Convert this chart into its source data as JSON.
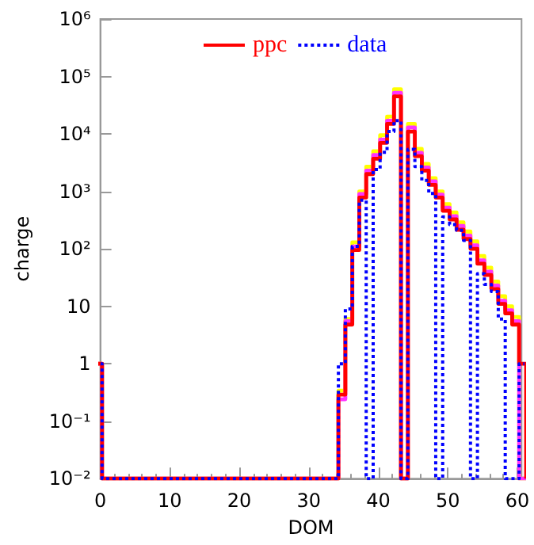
{
  "chart_data": {
    "type": "histogram",
    "xlabel": "DOM",
    "ylabel": "charge",
    "log": "y",
    "legend": "top",
    "grid": false,
    "bins": [
      -0.75,
      0.25,
      1.25,
      2.25,
      3.25,
      4.25,
      5.25,
      6.25,
      7.25,
      8.25,
      9.25,
      10.25,
      11.25,
      12.25,
      13.25,
      14.25,
      15.25,
      16.25,
      17.25,
      18.25,
      19.25,
      20.25,
      21.25,
      22.25,
      23.25,
      24.25,
      25.25,
      26.25,
      27.25,
      28.25,
      29.25,
      30.25,
      31.25,
      32.25,
      33.25,
      34.25,
      35.25,
      36.25,
      37.25,
      38.25,
      39.25,
      40.25,
      41.25,
      42.25,
      43.25,
      44.25,
      45.25,
      46.25,
      47.25,
      48.25,
      49.25,
      50.25,
      51.25,
      52.25,
      53.25,
      54.25,
      55.25,
      56.25,
      57.25,
      58.25,
      59.25,
      60.25,
      61.25
    ],
    "series": [
      {
        "color": "#ffff00",
        "line_style": "solid",
        "values": [
          1,
          null,
          null,
          null,
          null,
          null,
          null,
          null,
          null,
          null,
          null,
          null,
          null,
          null,
          null,
          null,
          null,
          null,
          null,
          null,
          null,
          null,
          null,
          null,
          null,
          null,
          null,
          null,
          null,
          null,
          null,
          null,
          null,
          null,
          null,
          0.34,
          6,
          130,
          1000,
          2700,
          5000,
          9500,
          20000,
          60000,
          null,
          15000,
          5500,
          3000,
          1700,
          1000,
          600,
          430,
          290,
          200,
          135,
          75,
          47,
          27,
          15,
          10,
          6.5,
          null
        ]
      },
      {
        "color": "#ff33ff",
        "line_style": "solid",
        "values": [
          1,
          null,
          null,
          null,
          null,
          null,
          null,
          null,
          null,
          null,
          null,
          null,
          null,
          null,
          null,
          null,
          null,
          null,
          null,
          null,
          null,
          null,
          null,
          null,
          null,
          null,
          null,
          null,
          null,
          null,
          null,
          null,
          null,
          null,
          null,
          0.24,
          5.5,
          110,
          900,
          2300,
          4300,
          8000,
          17000,
          52000,
          null,
          13000,
          4700,
          2600,
          1500,
          880,
          520,
          370,
          250,
          170,
          115,
          63,
          40,
          23,
          12.5,
          8.5,
          5.5,
          null
        ]
      },
      {
        "name": "ppc",
        "color": "#ff0000",
        "line_style": "solid",
        "values": [
          1,
          null,
          null,
          null,
          null,
          null,
          null,
          null,
          null,
          null,
          null,
          null,
          null,
          null,
          null,
          null,
          null,
          null,
          null,
          null,
          null,
          null,
          null,
          null,
          null,
          null,
          null,
          null,
          null,
          null,
          null,
          null,
          null,
          null,
          null,
          0.29,
          4.8,
          95,
          780,
          2000,
          3700,
          7000,
          15000,
          45000,
          null,
          11000,
          4100,
          2300,
          1300,
          780,
          460,
          325,
          215,
          148,
          100,
          55,
          35,
          20,
          11,
          7.5,
          4.8,
          1
        ]
      },
      {
        "name": "data",
        "color": "#0000ff",
        "line_style": "dotted",
        "values": [
          1,
          null,
          null,
          null,
          null,
          null,
          null,
          null,
          null,
          null,
          null,
          null,
          null,
          null,
          null,
          null,
          null,
          null,
          null,
          null,
          null,
          null,
          null,
          null,
          null,
          null,
          null,
          null,
          null,
          null,
          null,
          null,
          null,
          null,
          null,
          1,
          9,
          110,
          700,
          null,
          2400,
          4800,
          11000,
          17000,
          null,
          5400,
          2700,
          1550,
          920,
          null,
          360,
          265,
          210,
          140,
          null,
          37,
          24,
          18,
          6,
          null,
          null,
          1
        ]
      }
    ],
    "xlim": [
      0,
      60.6
    ],
    "xticks": [
      0,
      10,
      20,
      30,
      40,
      50,
      60
    ],
    "ylim": [
      0.01,
      1000000
    ],
    "yticks": [
      {
        "value": 0.01,
        "label": "10⁻²"
      },
      {
        "value": 0.1,
        "label": "10⁻¹"
      },
      1,
      10,
      {
        "value": 100,
        "label": "10²"
      },
      {
        "value": 1000,
        "label": "10³"
      },
      {
        "value": 10000,
        "label": "10⁴"
      },
      {
        "value": 100000,
        "label": "10⁵"
      },
      {
        "value": 1000000,
        "label": "10⁶"
      }
    ]
  }
}
